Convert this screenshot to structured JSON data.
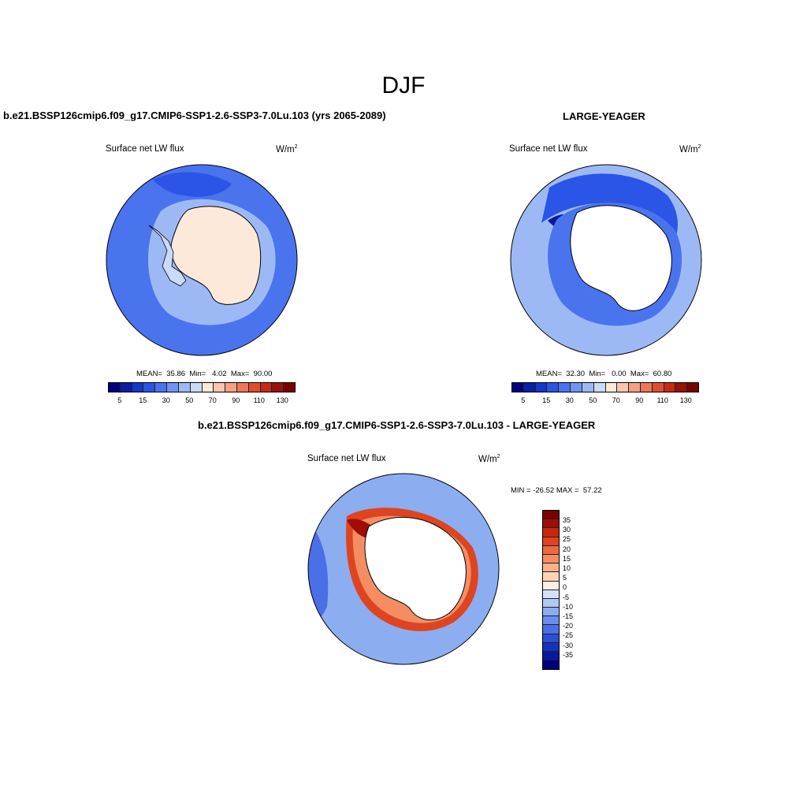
{
  "figure": {
    "season": "DJF",
    "variable": "Surface net LW flux",
    "units_base": "W/m",
    "units_exp": "2"
  },
  "panels": {
    "model": {
      "title": "b.e21.BSSP126cmip6.f09_g17.CMIP6-SSP1-2.6-SSP3-7.0Lu.103 (yrs 2065-2089)",
      "stats": "MEAN=  35.86  Min=   4.02  Max=  90.00"
    },
    "obs": {
      "title": "LARGE-YEAGER",
      "stats": "MEAN=  32.30  Min=   0.00  Max=  60.80"
    },
    "diff": {
      "title": "b.e21.BSSP126cmip6.f09_g17.CMIP6-SSP1-2.6-SSP3-7.0Lu.103 - LARGE-YEAGER",
      "minmax": "MIN = -26.52 MAX =  57.22"
    }
  },
  "colorbars": {
    "main": {
      "colors": [
        "#00007f",
        "#0a1fa8",
        "#1238d0",
        "#2b55e6",
        "#4a74ee",
        "#6f95f2",
        "#9db9f5",
        "#c9dbf8",
        "#fde9d9",
        "#f9c6ad",
        "#f3a183",
        "#eb7858",
        "#df4e30",
        "#c72a14",
        "#981208",
        "#7a0000"
      ],
      "labels": [
        "5",
        "15",
        "30",
        "50",
        "70",
        "90",
        "110",
        "130"
      ]
    },
    "diff": {
      "colors": [
        "#7a0000",
        "#a10c04",
        "#c8260f",
        "#de4420",
        "#ec6a3f",
        "#f48e62",
        "#f8b18c",
        "#fcd3b6",
        "#fdf0e4",
        "#d4e2f8",
        "#b0caf5",
        "#8dadf1",
        "#6a8eed",
        "#4a6fe6",
        "#2b4fd6",
        "#1333c0",
        "#0619a0",
        "#00007f"
      ],
      "labels": [
        "35",
        "30",
        "25",
        "20",
        "15",
        "10",
        "5",
        "0",
        "-5",
        "-10",
        "-15",
        "-20",
        "-25",
        "-30",
        "-35"
      ]
    }
  },
  "map_colors": {
    "ocean_mid": "#4a74ee",
    "ocean_dark": "#2b55e6",
    "ocean_light": "#9db9f5",
    "ocean_pale": "#c9dbf8",
    "land_model": "#fde9d9",
    "land_blank": "#ffffff",
    "diff_base": "#8dadf1",
    "diff_red": "#de4420",
    "diff_darkred": "#a10c04",
    "diff_orange": "#f48e62"
  }
}
